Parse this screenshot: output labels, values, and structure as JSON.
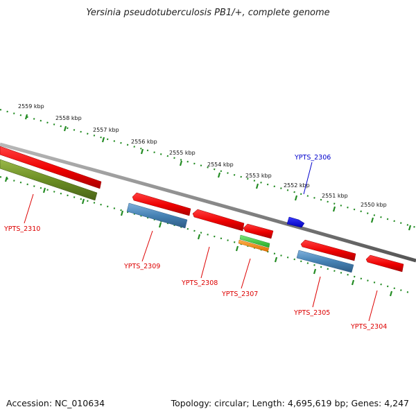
{
  "title": "Yersinia pseudotuberculosis PB1/+, complete genome",
  "footer": {
    "accession": "Accession: NC_010634",
    "summary": "Topology: circular; Length: 4,695,619 bp; Genes: 4,247"
  },
  "scale_ticks": [
    {
      "label": "2559 kbp"
    },
    {
      "label": "2558 kbp"
    },
    {
      "label": "2557 kbp"
    },
    {
      "label": "2556 kbp"
    },
    {
      "label": "2555 kbp"
    },
    {
      "label": "2554 kbp"
    },
    {
      "label": "2553 kbp"
    },
    {
      "label": "2552 kbp"
    },
    {
      "label": "2551 kbp"
    },
    {
      "label": "2550 kbp"
    }
  ],
  "genes": [
    {
      "id": "YPTS_2310",
      "color": "#dd0000"
    },
    {
      "id": "YPTS_2309",
      "color": "#dd0000"
    },
    {
      "id": "YPTS_2308",
      "color": "#dd0000"
    },
    {
      "id": "YPTS_2307",
      "color": "#dd0000"
    },
    {
      "id": "YPTS_2306",
      "color": "#0000cc"
    },
    {
      "id": "YPTS_2305",
      "color": "#dd0000"
    },
    {
      "id": "YPTS_2304",
      "color": "#dd0000"
    }
  ],
  "colors": {
    "cds": "#ee0000",
    "rna_blue": "#4682b4",
    "olive": "#6b8e23",
    "green": "#32cd32",
    "orange": "#ff8c00",
    "forward_gene": "#0000ff",
    "backbone": "#888888",
    "ticks": "#228b22"
  }
}
